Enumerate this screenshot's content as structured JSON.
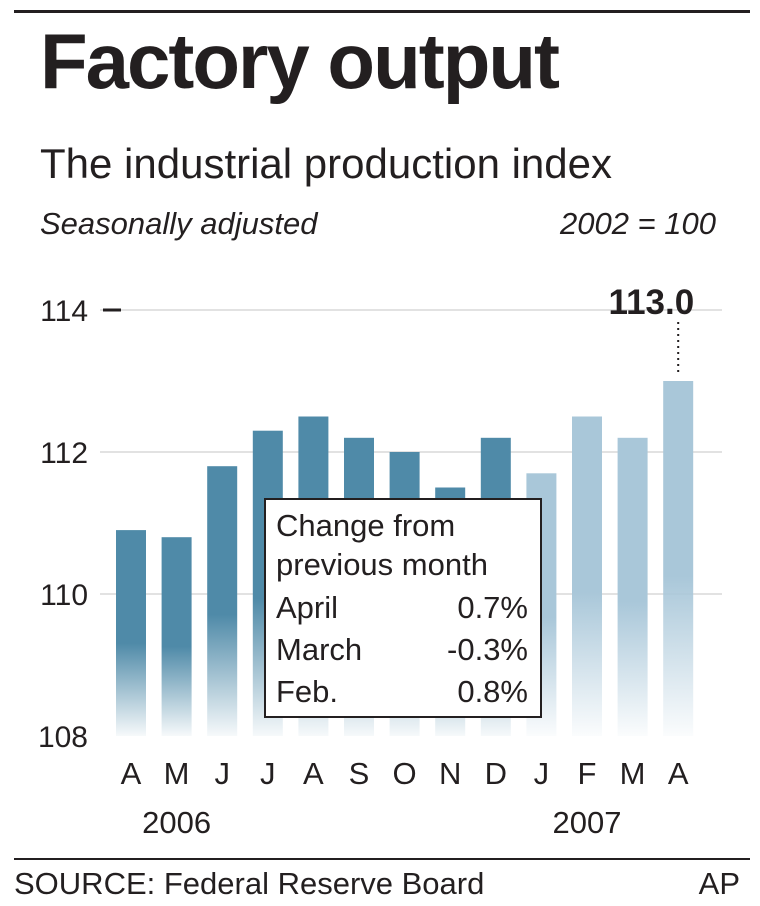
{
  "header": {
    "title": "Factory output",
    "subtitle": "The industrial production index",
    "note_left": "Seasonally adjusted",
    "note_right": "2002 = 100"
  },
  "chart_data": {
    "type": "bar",
    "categories": [
      "A",
      "M",
      "J",
      "J",
      "A",
      "S",
      "O",
      "N",
      "D",
      "J",
      "F",
      "M",
      "A"
    ],
    "year_labels": [
      {
        "label": "2006",
        "index": 1
      },
      {
        "label": "2007",
        "index": 10
      }
    ],
    "values": [
      110.9,
      110.8,
      111.8,
      112.3,
      112.5,
      112.2,
      112.0,
      111.5,
      112.2,
      111.7,
      112.5,
      112.2,
      113.0
    ],
    "year_of_bar": [
      "2006",
      "2006",
      "2006",
      "2006",
      "2006",
      "2006",
      "2006",
      "2006",
      "2006",
      "2007",
      "2007",
      "2007",
      "2007"
    ],
    "ylim": [
      108,
      114
    ],
    "yticks": [
      "108",
      "110",
      "112",
      "114"
    ],
    "grid": true,
    "colors": {
      "2006": "#4f8aa8",
      "2007": "#a9c7d9",
      "text": "#231f20",
      "grid": "#d9d9d9"
    },
    "callout": {
      "label": "113.0",
      "bar_index": 12
    }
  },
  "legend": {
    "heading_line1": "Change from",
    "heading_line2": "previous month",
    "rows": [
      {
        "label": "April",
        "value": "0.7%"
      },
      {
        "label": "March",
        "value": "-0.3%"
      },
      {
        "label": "Feb.",
        "value": "0.8%"
      }
    ]
  },
  "footer": {
    "source": "SOURCE: Federal Reserve Board",
    "credit": "AP"
  }
}
